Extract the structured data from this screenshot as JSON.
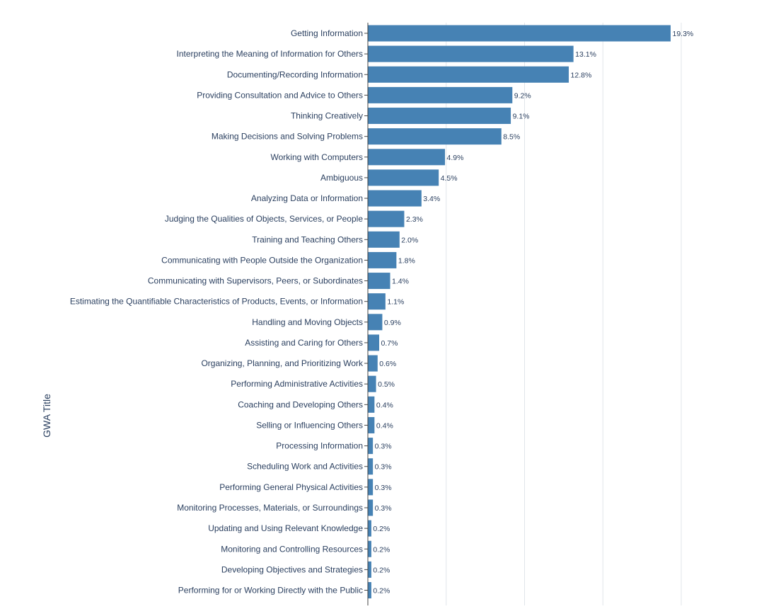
{
  "chart_data": {
    "type": "bar",
    "orientation": "horizontal",
    "title": "",
    "xlabel": "",
    "ylabel": "GWA Title",
    "xlim": [
      0,
      20
    ],
    "grid": true,
    "legend": "none",
    "bar_color": "#4682b4",
    "value_format": "{v}%",
    "categories": [
      "Getting Information",
      "Interpreting the Meaning of Information for Others",
      "Documenting/Recording Information",
      "Providing Consultation and Advice to Others",
      "Thinking Creatively",
      "Making Decisions and Solving Problems",
      "Working with Computers",
      "Ambiguous",
      "Analyzing Data or Information",
      "Judging the Qualities of Objects, Services, or People",
      "Training and Teaching Others",
      "Communicating with People Outside the Organization",
      "Communicating with Supervisors, Peers, or Subordinates",
      "Estimating the Quantifiable Characteristics of Products, Events, or Information",
      "Handling and Moving Objects",
      "Assisting and Caring for Others",
      "Organizing, Planning, and Prioritizing Work",
      "Performing Administrative Activities",
      "Coaching and Developing Others",
      "Selling or Influencing Others",
      "Processing Information",
      "Scheduling Work and Activities",
      "Performing General Physical Activities",
      "Monitoring Processes, Materials, or Surroundings",
      "Updating and Using Relevant Knowledge",
      "Monitoring and Controlling Resources",
      "Developing Objectives and Strategies",
      "Performing for or Working Directly with the Public"
    ],
    "values": [
      19.3,
      13.1,
      12.8,
      9.2,
      9.1,
      8.5,
      4.9,
      4.5,
      3.4,
      2.3,
      2.0,
      1.8,
      1.4,
      1.1,
      0.9,
      0.7,
      0.6,
      0.5,
      0.4,
      0.4,
      0.3,
      0.3,
      0.3,
      0.3,
      0.2,
      0.2,
      0.2,
      0.2
    ],
    "value_labels": [
      "19.3%",
      "13.1%",
      "12.8%",
      "9.2%",
      "9.1%",
      "8.5%",
      "4.9%",
      "4.5%",
      "3.4%",
      "2.3%",
      "2.0%",
      "1.8%",
      "1.4%",
      "1.1%",
      "0.9%",
      "0.7%",
      "0.6%",
      "0.5%",
      "0.4%",
      "0.4%",
      "0.3%",
      "0.3%",
      "0.3%",
      "0.3%",
      "0.2%",
      "0.2%",
      "0.2%",
      "0.2%"
    ],
    "xgrid_values": [
      5,
      10,
      15,
      20
    ]
  }
}
